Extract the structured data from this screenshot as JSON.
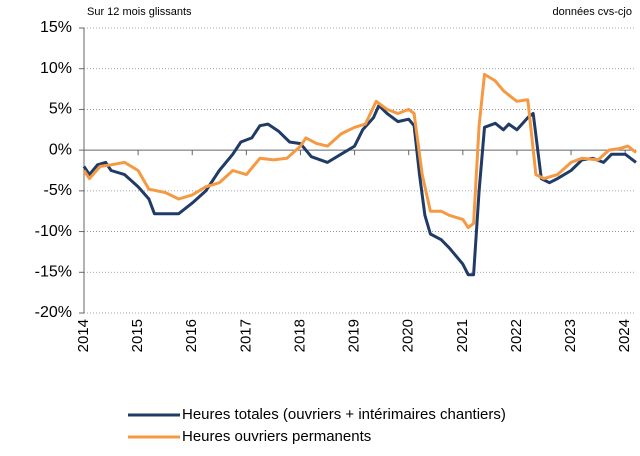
{
  "chart_data": {
    "type": "line",
    "annotations": [
      "Sur 12 mois glissants",
      "données cvs-cjo"
    ],
    "xlim": [
      2014,
      2024.2
    ],
    "xticks": [
      2014,
      2015,
      2016,
      2017,
      2018,
      2019,
      2020,
      2021,
      2022,
      2023,
      2024
    ],
    "ylim": [
      -20,
      15
    ],
    "yticks": [
      {
        "value": -20,
        "label": "-20%"
      },
      {
        "value": -15,
        "label": "-15%"
      },
      {
        "value": -10,
        "label": "-10%"
      },
      {
        "value": -5,
        "label": "-5%"
      },
      {
        "value": 0,
        "label": "0%"
      },
      {
        "value": 5,
        "label": "5%"
      },
      {
        "value": 10,
        "label": "10%"
      },
      {
        "value": 15,
        "label": "15%"
      }
    ],
    "grid": true,
    "legend": "bottom",
    "series": [
      {
        "name": "Heures totales (ouvriers + intérimaires chantiers)",
        "color": "#1f3b66",
        "x": [
          2014.0,
          2014.1,
          2014.25,
          2014.4,
          2014.5,
          2014.75,
          2015.0,
          2015.2,
          2015.3,
          2015.5,
          2015.75,
          2016.0,
          2016.25,
          2016.5,
          2016.75,
          2016.9,
          2017.1,
          2017.25,
          2017.4,
          2017.6,
          2017.8,
          2018.0,
          2018.2,
          2018.5,
          2018.75,
          2019.0,
          2019.15,
          2019.35,
          2019.45,
          2019.6,
          2019.8,
          2020.0,
          2020.1,
          2020.2,
          2020.3,
          2020.4,
          2020.6,
          2020.75,
          2021.0,
          2021.1,
          2021.2,
          2021.3,
          2021.4,
          2021.6,
          2021.75,
          2021.85,
          2022.0,
          2022.2,
          2022.3,
          2022.45,
          2022.6,
          2022.75,
          2023.0,
          2023.2,
          2023.4,
          2023.6,
          2023.75,
          2024.0,
          2024.1,
          2024.2
        ],
        "values": [
          -2,
          -3,
          -1.8,
          -1.5,
          -2.5,
          -3,
          -4.5,
          -6,
          -7.8,
          -7.8,
          -7.8,
          -6.5,
          -5,
          -2.5,
          -0.5,
          1,
          1.5,
          3,
          3.2,
          2.3,
          1,
          0.8,
          -0.8,
          -1.5,
          -0.5,
          0.5,
          2.5,
          4,
          5.5,
          4.5,
          3.5,
          3.8,
          3,
          -3,
          -8,
          -10.3,
          -11,
          -12,
          -14,
          -15.3,
          -15.3,
          -5,
          2.8,
          3.3,
          2.5,
          3.2,
          2.5,
          4,
          4.5,
          -3.5,
          -4,
          -3.5,
          -2.5,
          -1.2,
          -1,
          -1.5,
          -0.5,
          -0.5,
          -1,
          -1.5
        ]
      },
      {
        "name": "Heures ouvriers permanents",
        "color": "#f59a42",
        "x": [
          2014.0,
          2014.1,
          2014.3,
          2014.5,
          2014.75,
          2015.0,
          2015.2,
          2015.5,
          2015.75,
          2016.0,
          2016.25,
          2016.5,
          2016.75,
          2017.0,
          2017.25,
          2017.5,
          2017.75,
          2018.0,
          2018.1,
          2018.3,
          2018.5,
          2018.75,
          2019.0,
          2019.2,
          2019.4,
          2019.6,
          2019.8,
          2020.0,
          2020.1,
          2020.25,
          2020.4,
          2020.6,
          2020.75,
          2021.0,
          2021.1,
          2021.2,
          2021.3,
          2021.4,
          2021.6,
          2021.75,
          2021.9,
          2022.0,
          2022.2,
          2022.35,
          2022.5,
          2022.75,
          2023.0,
          2023.2,
          2023.5,
          2023.7,
          2023.9,
          2024.05,
          2024.2
        ],
        "values": [
          -2.5,
          -3.5,
          -2,
          -1.8,
          -1.5,
          -2.5,
          -4.8,
          -5.2,
          -6,
          -5.5,
          -4.5,
          -4,
          -2.5,
          -3,
          -1,
          -1.2,
          -1,
          0.5,
          1.5,
          0.8,
          0.5,
          2,
          2.8,
          3.2,
          6,
          5,
          4.5,
          5,
          4.5,
          -3,
          -7.5,
          -7.5,
          -8,
          -8.5,
          -9.5,
          -9,
          3,
          9.3,
          8.5,
          7.3,
          6.5,
          6,
          6.2,
          -3,
          -3.5,
          -3,
          -1.5,
          -1,
          -1.2,
          0,
          0.2,
          0.5,
          -0.3
        ]
      }
    ]
  }
}
